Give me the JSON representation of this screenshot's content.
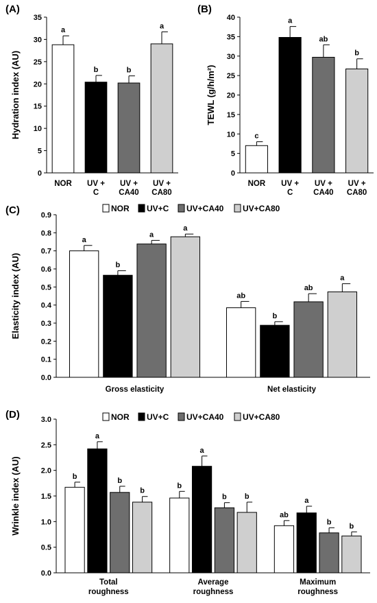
{
  "chart_data": [
    {
      "panel": "(A)",
      "type": "bar",
      "ylabel": "Hydration index (AU)",
      "ylim": [
        0,
        35
      ],
      "yticks": [
        "0",
        "5",
        "10",
        "15",
        "20",
        "25",
        "30",
        "35"
      ],
      "categories": [
        [
          "NOR"
        ],
        [
          "UV +",
          "C"
        ],
        [
          "UV +",
          "CA40"
        ],
        [
          "UV +",
          "CA80"
        ]
      ],
      "values": [
        28.8,
        20.4,
        20.2,
        29.0
      ],
      "errors": [
        2.0,
        1.5,
        1.6,
        2.7
      ],
      "labels": [
        "a",
        "b",
        "b",
        "a"
      ],
      "colors": [
        "#ffffff",
        "#000000",
        "#6e6e6e",
        "#cfcfcf"
      ]
    },
    {
      "panel": "(B)",
      "type": "bar",
      "ylabel": "TEWL (g/h/m²)",
      "ylim": [
        0,
        40
      ],
      "yticks": [
        "0",
        "5",
        "10",
        "15",
        "20",
        "25",
        "30",
        "35",
        "40"
      ],
      "categories": [
        [
          "NOR"
        ],
        [
          "UV +",
          "C"
        ],
        [
          "UV +",
          "CA40"
        ],
        [
          "UV +",
          "CA80"
        ]
      ],
      "values": [
        7.0,
        34.8,
        29.7,
        26.7
      ],
      "errors": [
        1.0,
        2.8,
        3.2,
        2.6
      ],
      "labels": [
        "c",
        "a",
        "ab",
        "b"
      ],
      "colors": [
        "#ffffff",
        "#000000",
        "#6e6e6e",
        "#cfcfcf"
      ]
    },
    {
      "panel": "(C)",
      "type": "bar",
      "ylabel": "Elasticity index (AU)",
      "ylim": [
        0,
        0.9
      ],
      "yticks": [
        "0.0",
        "0.1",
        "0.2",
        "0.3",
        "0.4",
        "0.5",
        "0.6",
        "0.7",
        "0.8",
        "0.9"
      ],
      "categories": [
        [
          "Gross elasticity"
        ],
        [
          "Net elasticity"
        ]
      ],
      "legend": [
        "NOR",
        "UV+C",
        "UV+CA40",
        "UV+CA80"
      ],
      "series": [
        {
          "name": "NOR",
          "values": [
            0.7,
            0.385
          ],
          "errors": [
            0.03,
            0.035
          ],
          "labels": [
            "a",
            "ab"
          ],
          "color": "#ffffff"
        },
        {
          "name": "UV+C",
          "values": [
            0.565,
            0.288
          ],
          "errors": [
            0.025,
            0.02
          ],
          "labels": [
            "b",
            "b"
          ],
          "color": "#000000"
        },
        {
          "name": "UV+CA40",
          "values": [
            0.738,
            0.418
          ],
          "errors": [
            0.02,
            0.045
          ],
          "labels": [
            "a",
            "ab"
          ],
          "color": "#6e6e6e"
        },
        {
          "name": "UV+CA80",
          "values": [
            0.778,
            0.473
          ],
          "errors": [
            0.015,
            0.045
          ],
          "labels": [
            "a",
            "a"
          ],
          "color": "#cfcfcf"
        }
      ]
    },
    {
      "panel": "(D)",
      "type": "bar",
      "ylabel": "Wrinkle index (AU)",
      "ylim": [
        0,
        3.0
      ],
      "yticks": [
        "0.0",
        "0.5",
        "1.0",
        "1.5",
        "2.0",
        "2.5",
        "3.0"
      ],
      "categories": [
        [
          "Total",
          "roughness"
        ],
        [
          "Average",
          "roughness"
        ],
        [
          "Maximum",
          "roughness"
        ]
      ],
      "legend": [
        "NOR",
        "UV+C",
        "UV+CA40",
        "UV+CA80"
      ],
      "series": [
        {
          "name": "NOR",
          "values": [
            1.67,
            1.46,
            0.92
          ],
          "errors": [
            0.1,
            0.13,
            0.1
          ],
          "labels": [
            "b",
            "b",
            "ab"
          ],
          "color": "#ffffff"
        },
        {
          "name": "UV+C",
          "values": [
            2.42,
            2.08,
            1.17
          ],
          "errors": [
            0.14,
            0.2,
            0.13
          ],
          "labels": [
            "a",
            "a",
            "a"
          ],
          "color": "#000000"
        },
        {
          "name": "UV+CA40",
          "values": [
            1.57,
            1.27,
            0.78
          ],
          "errors": [
            0.12,
            0.1,
            0.1
          ],
          "labels": [
            "b",
            "b",
            "b"
          ],
          "color": "#6e6e6e"
        },
        {
          "name": "UV+CA80",
          "values": [
            1.38,
            1.18,
            0.72
          ],
          "errors": [
            0.11,
            0.2,
            0.08
          ],
          "labels": [
            "b",
            "b",
            "b"
          ],
          "color": "#cfcfcf"
        }
      ]
    }
  ]
}
